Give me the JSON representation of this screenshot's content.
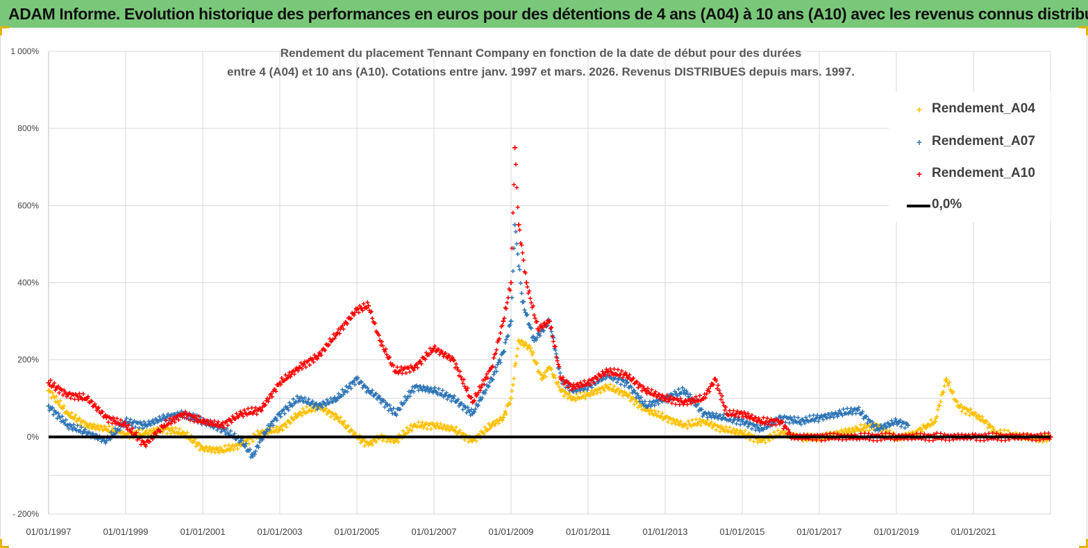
{
  "banner": {
    "title": "ADAM Informe. Evolution historique des performances en euros pour des détentions de 4 ans (A04) à 10 ans (A10) avec les revenus connus distribués"
  },
  "colors": {
    "banner_bg": "#79c879",
    "a04": "#ffc000",
    "a07": "#2e75b6",
    "a10": "#ff0000",
    "zero_line": "#000000",
    "grid": "#d9d9d9"
  },
  "chart_data": {
    "type": "scatter",
    "title_lines": [
      "Rendement du placement Tennant Company en fonction de la date de début pour des durées",
      "entre 4 (A04) et 10 ans (A10). Cotations entre janv. 1997 et mars. 2026. Revenus DISTRIBUES depuis mars. 1997."
    ],
    "xlabel": "",
    "ylabel": "",
    "ylim": [
      -200,
      1000
    ],
    "y_ticks": [
      -200,
      0,
      200,
      400,
      600,
      800,
      1000
    ],
    "y_tick_labels": [
      "- 200%",
      "0%",
      "200%",
      "400%",
      "600%",
      "800%",
      "1 000%"
    ],
    "x_range": [
      1997.0,
      2023.0
    ],
    "x_ticks": [
      1997,
      1999,
      2001,
      2003,
      2005,
      2007,
      2009,
      2011,
      2013,
      2015,
      2017,
      2019,
      2021
    ],
    "x_tick_labels": [
      "01/01/1997",
      "01/01/1999",
      "01/01/2001",
      "01/01/2003",
      "01/01/2005",
      "01/01/2007",
      "01/01/2009",
      "01/01/2011",
      "01/01/2013",
      "01/01/2015",
      "01/01/2017",
      "01/01/2019",
      "01/01/2021"
    ],
    "grid": true,
    "legend_position": "top-right",
    "series": [
      {
        "name": "Rendement_A04",
        "marker": "+",
        "x": [
          1997.0,
          1997.5,
          1998.0,
          1998.5,
          1999.0,
          1999.5,
          2000.0,
          2000.5,
          2001.0,
          2001.5,
          2002.0,
          2002.5,
          2003.0,
          2003.5,
          2004.0,
          2004.5,
          2005.0,
          2005.3,
          2005.6,
          2006.0,
          2006.5,
          2007.0,
          2007.5,
          2008.0,
          2008.5,
          2008.8,
          2009.0,
          2009.2,
          2009.5,
          2009.8,
          2010.0,
          2010.3,
          2010.6,
          2011.0,
          2011.5,
          2012.0,
          2012.5,
          2013.0,
          2013.5,
          2014.0,
          2014.5,
          2015.0,
          2015.5,
          2016.0,
          2016.5,
          2017.0,
          2017.5,
          2018.0,
          2018.5,
          2019.0,
          2019.5,
          2019.8,
          2020.0,
          2020.3,
          2020.6,
          2021.0,
          2021.3,
          2021.6,
          2022.0,
          2022.3,
          2022.6,
          2023.0
        ],
        "y": [
          120,
          60,
          30,
          20,
          5,
          10,
          20,
          10,
          -30,
          -35,
          -20,
          10,
          20,
          60,
          80,
          50,
          0,
          -20,
          0,
          -10,
          30,
          30,
          20,
          -10,
          30,
          50,
          100,
          250,
          230,
          150,
          180,
          120,
          100,
          110,
          130,
          110,
          70,
          50,
          30,
          40,
          20,
          10,
          -10,
          10,
          0,
          -5,
          10,
          20,
          30,
          -5,
          10,
          30,
          40,
          150,
          80,
          60,
          40,
          10,
          5,
          0,
          -5,
          0
        ]
      },
      {
        "name": "Rendement_A07",
        "marker": "+",
        "x": [
          1997.0,
          1997.5,
          1998.0,
          1998.5,
          1999.0,
          1999.5,
          2000.0,
          2000.5,
          2001.0,
          2001.5,
          2002.0,
          2002.3,
          2002.6,
          2003.0,
          2003.5,
          2004.0,
          2004.5,
          2005.0,
          2005.3,
          2005.6,
          2006.0,
          2006.5,
          2007.0,
          2007.5,
          2008.0,
          2008.5,
          2008.8,
          2009.0,
          2009.1,
          2009.3,
          2009.6,
          2010.0,
          2010.3,
          2010.6,
          2011.0,
          2011.5,
          2012.0,
          2012.5,
          2013.0,
          2013.5,
          2014.0,
          2014.5,
          2015.0,
          2015.5,
          2016.0,
          2016.5,
          2017.0,
          2017.5,
          2018.0,
          2018.5,
          2019.0,
          2019.3
        ],
        "y": [
          80,
          30,
          10,
          -10,
          40,
          30,
          50,
          60,
          40,
          20,
          -10,
          -50,
          10,
          60,
          100,
          80,
          100,
          150,
          120,
          100,
          60,
          130,
          120,
          100,
          60,
          150,
          220,
          300,
          550,
          350,
          250,
          300,
          150,
          120,
          130,
          160,
          140,
          80,
          100,
          120,
          60,
          50,
          40,
          20,
          50,
          40,
          50,
          60,
          70,
          20,
          40,
          30
        ]
      },
      {
        "name": "Rendement_A10",
        "marker": "+",
        "x": [
          1997.0,
          1997.5,
          1998.0,
          1998.5,
          1999.0,
          1999.5,
          2000.0,
          2000.5,
          2001.0,
          2001.5,
          2002.0,
          2002.5,
          2003.0,
          2003.5,
          2004.0,
          2004.5,
          2005.0,
          2005.3,
          2005.6,
          2006.0,
          2006.5,
          2007.0,
          2007.5,
          2008.0,
          2008.5,
          2008.8,
          2009.0,
          2009.1,
          2009.2,
          2009.4,
          2009.7,
          2010.0,
          2010.3,
          2010.6,
          2011.0,
          2011.5,
          2012.0,
          2012.5,
          2013.0,
          2013.5,
          2014.0,
          2014.3,
          2014.6,
          2015.0,
          2015.5,
          2016.0,
          2016.3,
          2017.0,
          2018.0,
          2019.0,
          2020.0,
          2021.0,
          2022.0,
          2023.0
        ],
        "y": [
          140,
          110,
          100,
          50,
          30,
          -20,
          30,
          60,
          40,
          30,
          60,
          70,
          140,
          180,
          210,
          270,
          330,
          340,
          250,
          170,
          180,
          230,
          200,
          90,
          180,
          300,
          400,
          750,
          550,
          400,
          280,
          300,
          150,
          130,
          140,
          170,
          160,
          120,
          100,
          90,
          100,
          150,
          60,
          60,
          40,
          40,
          0,
          0,
          0,
          0,
          0,
          0,
          0,
          0
        ]
      }
    ],
    "legend": [
      {
        "label": "Rendement_A04",
        "kind": "marker",
        "color": "#ffc000"
      },
      {
        "label": "Rendement_A07",
        "kind": "marker",
        "color": "#2e75b6"
      },
      {
        "label": "Rendement_A10",
        "kind": "marker",
        "color": "#ff0000"
      },
      {
        "label": "0,0%",
        "kind": "line",
        "color": "#000000"
      }
    ],
    "reference_line": {
      "name": "0,0%",
      "y": 0
    }
  }
}
